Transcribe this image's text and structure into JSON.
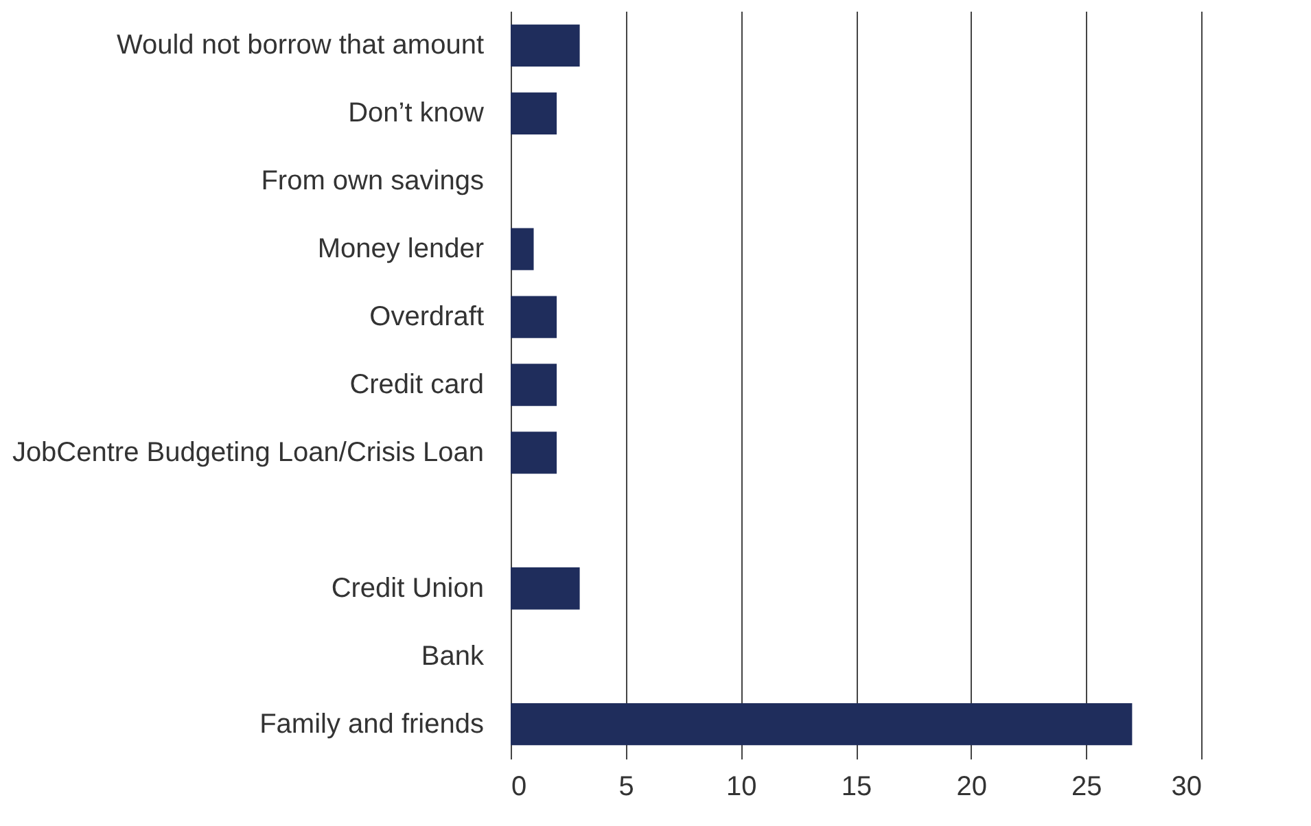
{
  "chart_data": {
    "type": "bar",
    "orientation": "horizontal",
    "categories": [
      "Would not borrow that amount",
      "Don’t know",
      "From own savings",
      "Money lender",
      "Overdraft",
      "Credit card",
      "JobCentre Budgeting Loan/Crisis Loan",
      null,
      "Credit Union",
      "Bank",
      "Family and friends"
    ],
    "values": [
      3,
      2,
      0,
      1,
      2,
      2,
      2,
      0,
      3,
      0,
      27
    ],
    "color": "#1f2d5c",
    "xlim": [
      0,
      30
    ],
    "xticks": [
      0,
      5,
      10,
      15,
      20,
      25,
      30
    ],
    "grid": "x"
  }
}
